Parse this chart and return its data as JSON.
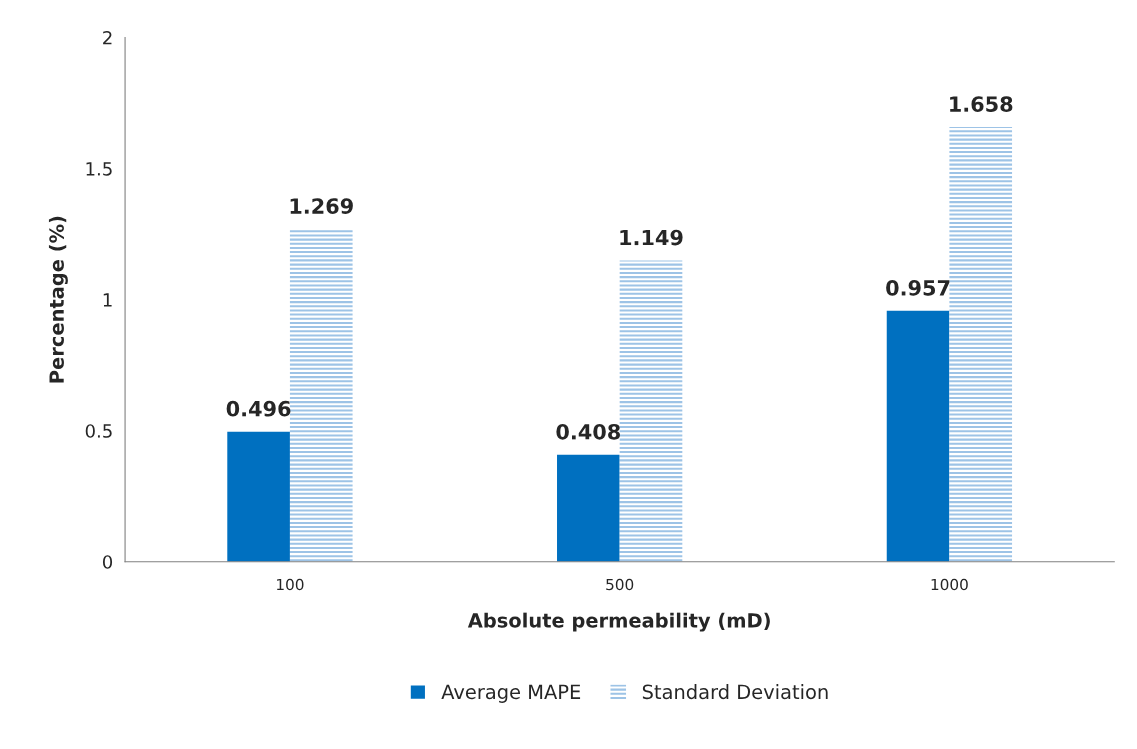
{
  "chart_data": {
    "type": "bar",
    "categories": [
      "100",
      "500",
      "1000"
    ],
    "series": [
      {
        "name": "Average MAPE",
        "color": "#0070c0",
        "values": [
          0.496,
          0.408,
          0.957
        ]
      },
      {
        "name": "Standard Deviation",
        "color": "#9dc3e6",
        "values": [
          1.269,
          1.149,
          1.658
        ]
      }
    ],
    "xlabel": "Absolute permeability (mD)",
    "ylabel": "Percentage (%)",
    "ylim": [
      0,
      2
    ],
    "yticks": [
      0,
      0.5,
      1,
      1.5,
      2
    ],
    "data_labels": true,
    "legend": "bottom",
    "grid": false
  }
}
